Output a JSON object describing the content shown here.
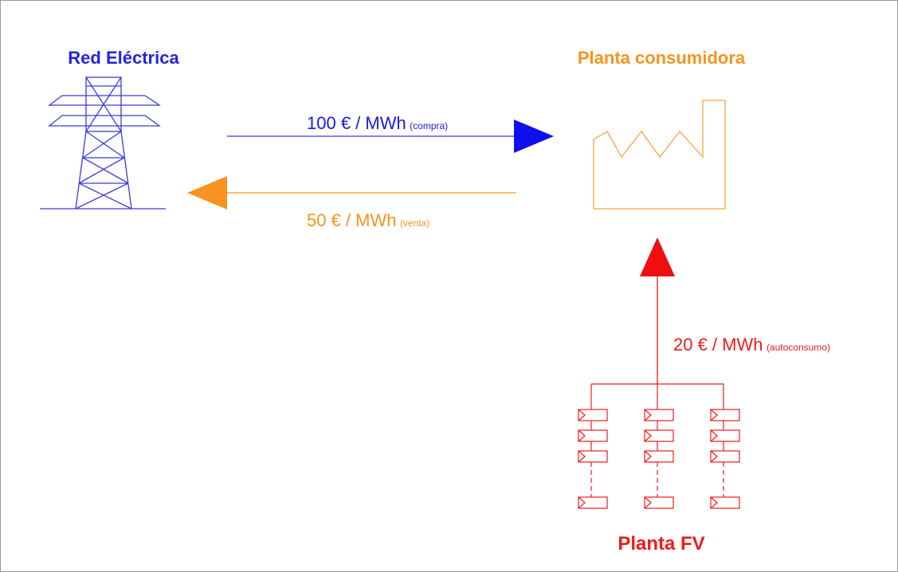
{
  "nodes": [
    {
      "label": "Red Eléctrica"
    },
    {
      "label": "Planta consumidora"
    },
    {
      "label": "Planta FV"
    }
  ],
  "flows": [
    {
      "price": "100 € / MWh",
      "note": "(compra)"
    },
    {
      "price": "50 € / MWh",
      "note": "(venta)"
    },
    {
      "price": "20 € / MWh",
      "note": "(autoconsumo)"
    }
  ]
}
